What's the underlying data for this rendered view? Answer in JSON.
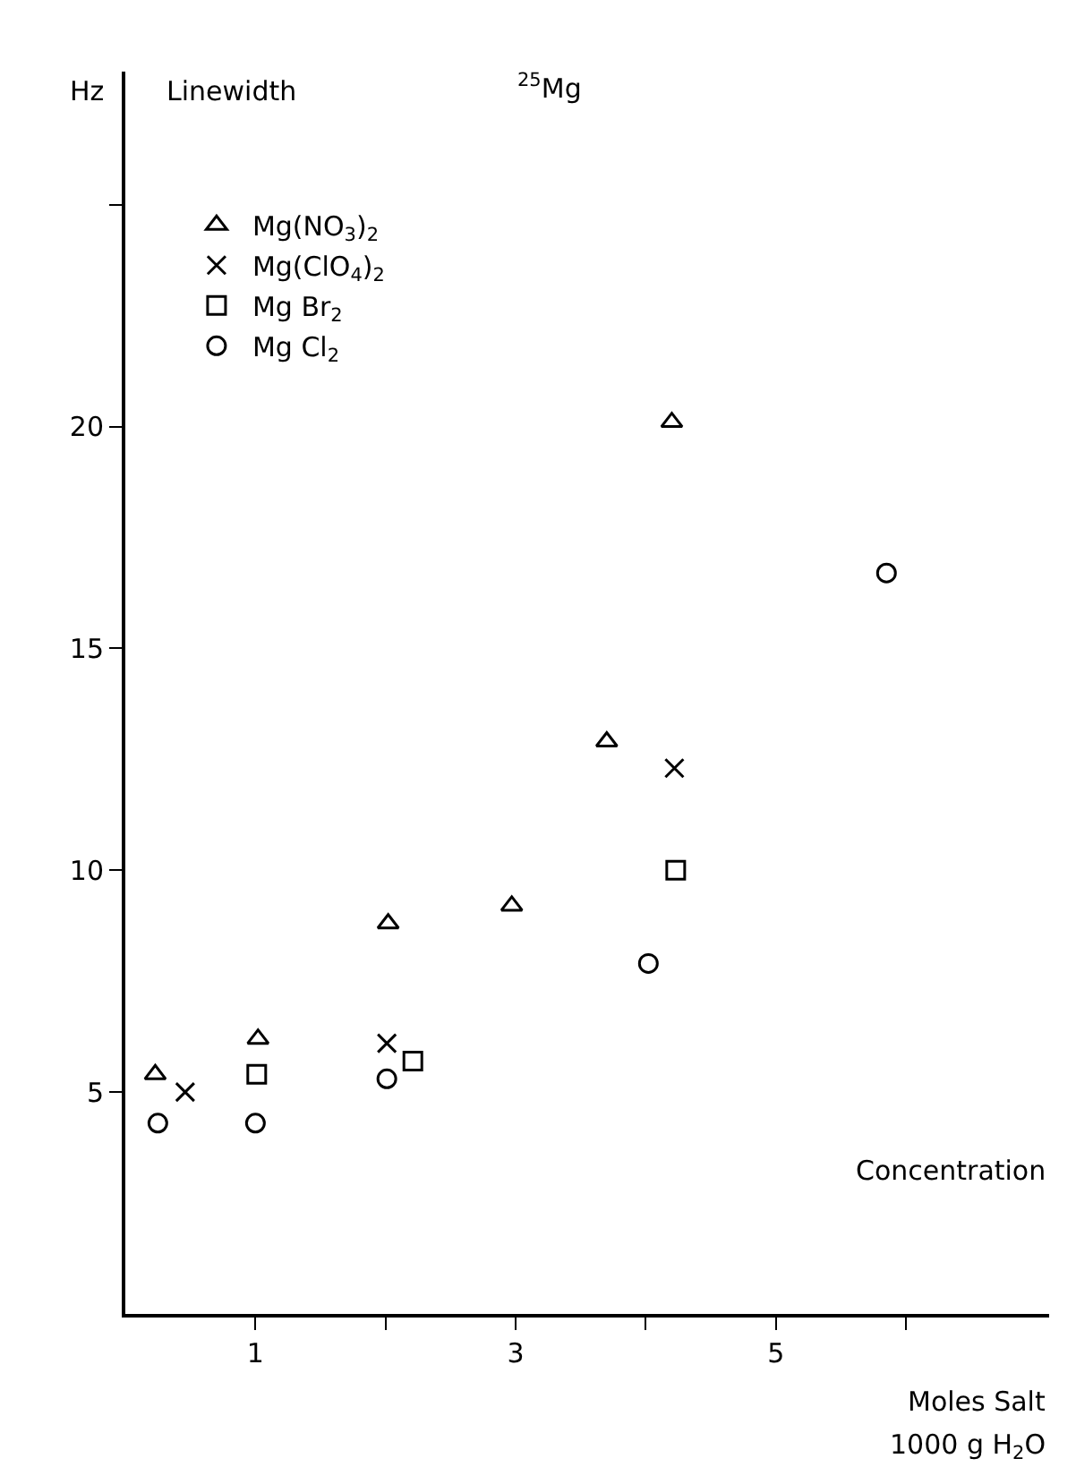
{
  "chart_data": {
    "type": "scatter",
    "title": "$^{25}$Mg",
    "ylabel": "Linewidth",
    "xlabel": "Concentration",
    "annotations": [
      "Hz",
      "Moles Salt",
      "1000 g H$_{2}$O"
    ],
    "xlim": [
      0,
      7.1
    ],
    "ylim": [
      0,
      28
    ],
    "xticks": [
      1,
      {
        "value": 2,
        "label": null
      },
      3,
      {
        "value": 4,
        "label": null
      },
      5,
      {
        "value": 6,
        "label": null
      }
    ],
    "yticks": [
      5,
      10,
      15,
      20,
      {
        "value": 25,
        "label": null
      }
    ],
    "grid": false,
    "legend": "top left",
    "series": [
      {
        "name": "Mg(NO$_{3}$)$_{2}$",
        "color": "#000000",
        "marker": "triangle",
        "x": [
          0.23,
          1.02,
          2.02,
          2.97,
          3.7,
          4.2
        ],
        "values": [
          5.4,
          6.2,
          8.8,
          9.2,
          12.9,
          20.1
        ]
      },
      {
        "name": "Mg(ClO$_{4}$)$_{2}$",
        "color": "#000000",
        "marker": "cross",
        "x": [
          0.46,
          2.01,
          4.22
        ],
        "values": [
          5.0,
          6.1,
          12.3
        ]
      },
      {
        "name": "Mg Br$_{2}$",
        "color": "#000000",
        "marker": "square",
        "x": [
          1.01,
          2.21,
          4.23
        ],
        "values": [
          5.4,
          5.7,
          10.0
        ]
      },
      {
        "name": "Mg Cl$_{2}$",
        "color": "#000000",
        "marker": "circle",
        "x": [
          0.25,
          1.0,
          2.01,
          4.02,
          5.85
        ],
        "values": [
          4.3,
          4.3,
          5.3,
          7.9,
          16.7
        ]
      }
    ]
  }
}
